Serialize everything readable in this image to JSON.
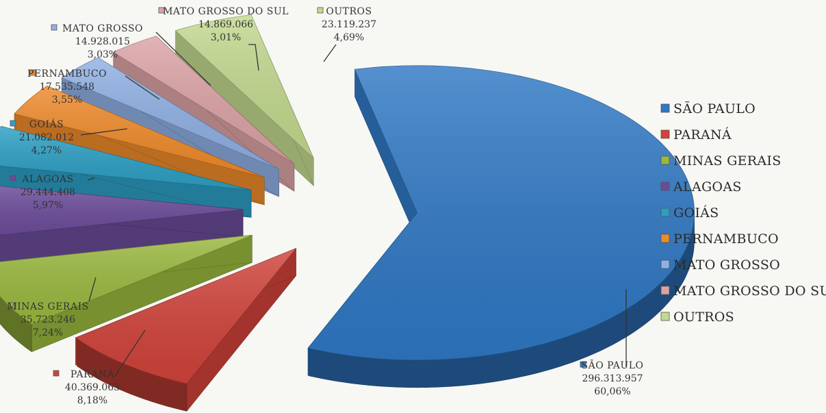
{
  "chart_data": {
    "type": "pie",
    "style": "3d-exploded",
    "legend_position": "right",
    "slices": [
      {
        "name": "SÃO PAULO",
        "value_label": "296.313.957",
        "percent_label": "60,06%",
        "value": 296313957,
        "percent": 60.06,
        "color": "#2f78c4"
      },
      {
        "name": "PARANÁ",
        "value_label": "40.369.063",
        "percent_label": "8,18%",
        "value": 40369063,
        "percent": 8.18,
        "color": "#d0433a"
      },
      {
        "name": "MINAS GERAIS",
        "value_label": "35.723.246",
        "percent_label": "7,24%",
        "value": 35723246,
        "percent": 7.24,
        "color": "#9ab83e"
      },
      {
        "name": "ALAGOAS",
        "value_label": "29.444.408",
        "percent_label": "5,97%",
        "value": 29444408,
        "percent": 5.97,
        "color": "#6b4b9a"
      },
      {
        "name": "GOIÁS",
        "value_label": "21.082.012",
        "percent_label": "4,27%",
        "value": 21082012,
        "percent": 4.27,
        "color": "#2c9fc4"
      },
      {
        "name": "PERNAMBUCO",
        "value_label": "17.535.548",
        "percent_label": "3,55%",
        "value": 17535548,
        "percent": 3.55,
        "color": "#ef8a2a"
      },
      {
        "name": "MATO GROSSO",
        "value_label": "14.928.015",
        "percent_label": "3,03%",
        "value": 14928015,
        "percent": 3.03,
        "color": "#8fb0e4"
      },
      {
        "name": "MATO GROSSO DO SUL",
        "value_label": "14.869.066",
        "percent_label": "3,01%",
        "value": 14869066,
        "percent": 3.01,
        "color": "#dca3a6"
      },
      {
        "name": "OUTROS",
        "value_label": "23.119.237",
        "percent_label": "4,69%",
        "value": 23119237,
        "percent": 4.69,
        "color": "#c3d98e"
      }
    ],
    "callout_names": {
      "MINAS GERAIS": "MINAS GERAIS"
    }
  }
}
